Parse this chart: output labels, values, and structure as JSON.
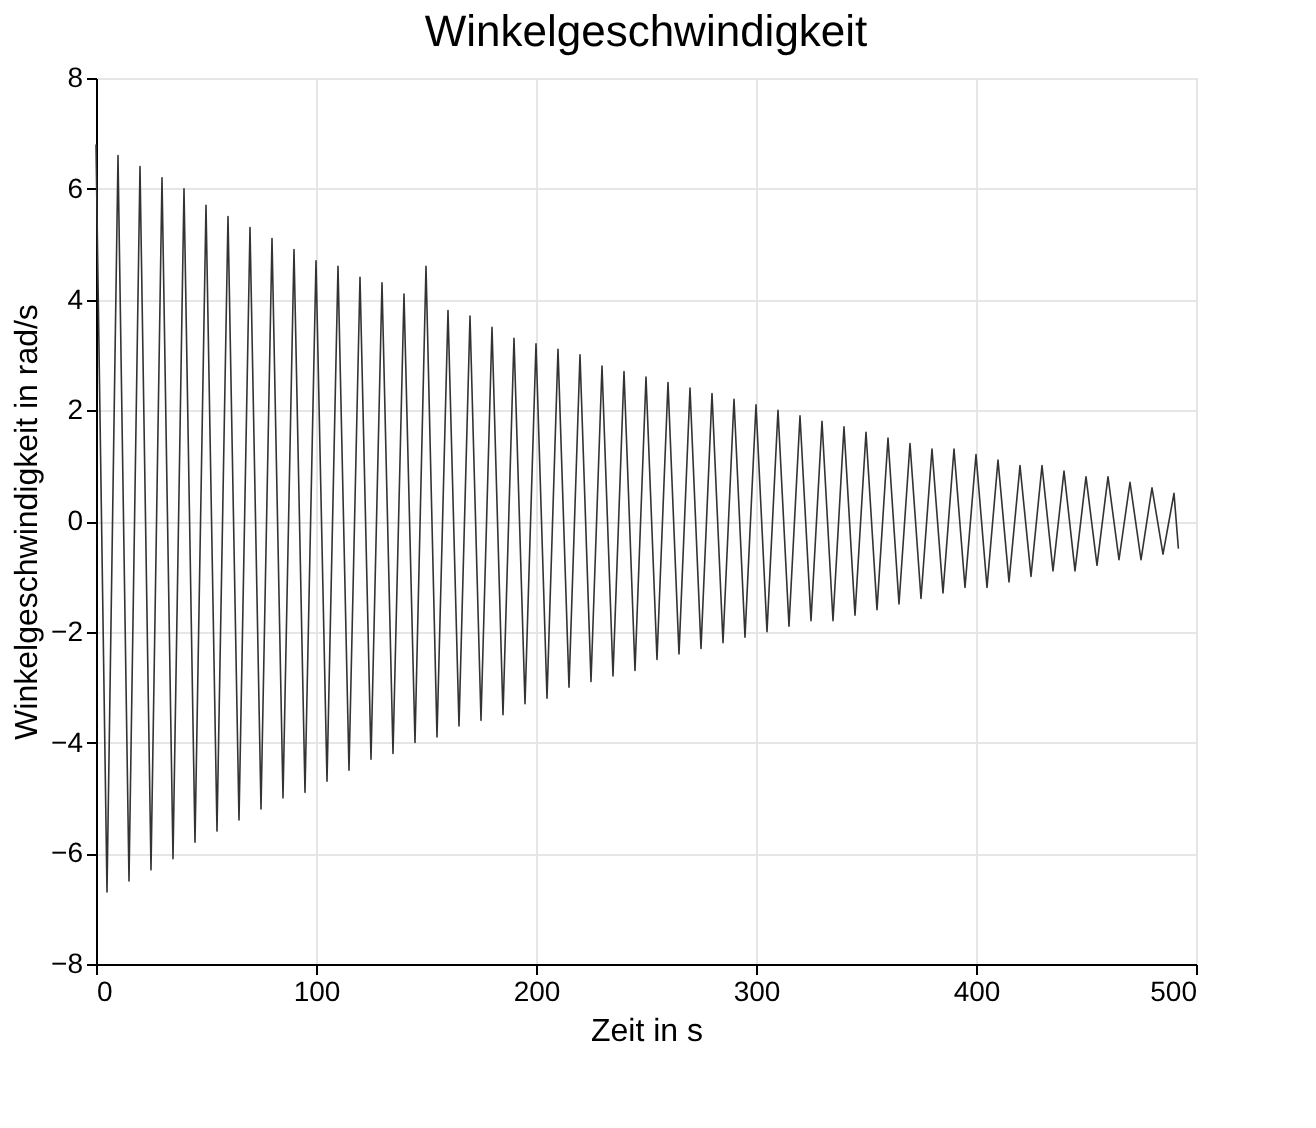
{
  "chart_data": {
    "type": "line",
    "title": "Winkelgeschwindigkeit",
    "xlabel": "Zeit in s",
    "ylabel": "Winkelgeschwindigkeit in rad/s",
    "x": [
      0,
      5,
      10,
      15,
      20,
      25,
      30,
      35,
      40,
      45,
      50,
      55,
      60,
      65,
      70,
      75,
      80,
      85,
      90,
      95,
      100,
      105,
      110,
      115,
      120,
      125,
      130,
      135,
      140,
      145,
      150,
      155,
      160,
      165,
      170,
      175,
      180,
      185,
      190,
      195,
      200,
      205,
      210,
      215,
      220,
      225,
      230,
      235,
      240,
      245,
      250,
      255,
      260,
      265,
      270,
      275,
      280,
      285,
      290,
      295,
      300,
      305,
      310,
      315,
      320,
      325,
      330,
      335,
      340,
      345,
      350,
      355,
      360,
      365,
      370,
      375,
      380,
      385,
      390,
      395,
      400,
      405,
      410,
      415,
      420,
      425,
      430,
      435,
      440,
      445,
      450,
      455,
      460,
      465,
      470,
      475,
      480,
      485,
      490,
      492
    ],
    "series": [
      {
        "color": "#333333",
        "values": [
          6.8,
          -6.7,
          6.6,
          -6.5,
          6.4,
          -6.3,
          6.2,
          -6.1,
          6.0,
          -5.8,
          5.7,
          -5.6,
          5.5,
          -5.4,
          5.3,
          -5.2,
          5.1,
          -5.0,
          4.9,
          -4.9,
          4.7,
          -4.7,
          4.6,
          -4.5,
          4.4,
          -4.3,
          4.3,
          -4.2,
          4.1,
          -4.0,
          4.6,
          -3.9,
          3.8,
          -3.7,
          3.7,
          -3.6,
          3.5,
          -3.5,
          3.3,
          -3.3,
          3.2,
          -3.2,
          3.1,
          -3.0,
          3.0,
          -2.9,
          2.8,
          -2.8,
          2.7,
          -2.7,
          2.6,
          -2.5,
          2.5,
          -2.4,
          2.4,
          -2.3,
          2.3,
          -2.2,
          2.2,
          -2.1,
          2.1,
          -2.0,
          2.0,
          -1.9,
          1.9,
          -1.8,
          1.8,
          -1.8,
          1.7,
          -1.7,
          1.6,
          -1.6,
          1.5,
          -1.5,
          1.4,
          -1.4,
          1.3,
          -1.3,
          1.3,
          -1.2,
          1.2,
          -1.2,
          1.1,
          -1.1,
          1.0,
          -1.0,
          1.0,
          -0.9,
          0.9,
          -0.9,
          0.8,
          -0.8,
          0.8,
          -0.7,
          0.7,
          -0.7,
          0.6,
          -0.6,
          0.5,
          -0.5
        ]
      }
    ],
    "xlim": [
      0,
      500
    ],
    "xticks": [
      0,
      100,
      200,
      300,
      400,
      500
    ],
    "ylim": [
      -8,
      8
    ],
    "yticks": [
      -8,
      -6,
      -4,
      -2,
      0,
      2,
      4,
      6,
      8
    ],
    "grid": true,
    "marker": "none",
    "line_style": "solid"
  }
}
